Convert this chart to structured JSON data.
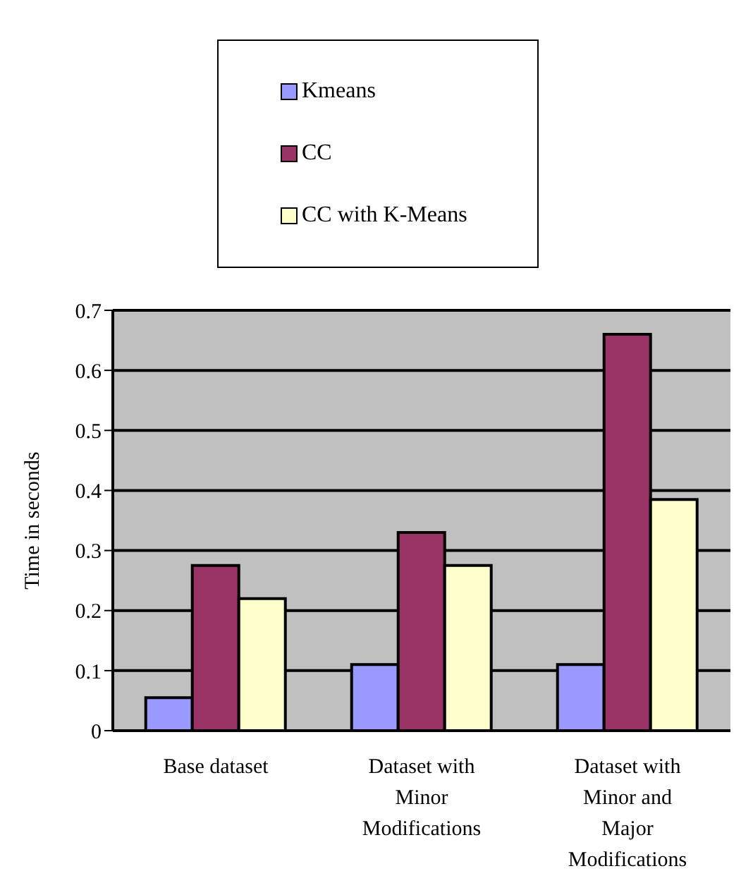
{
  "chart_data": {
    "type": "bar",
    "ylabel": "Time in seconds",
    "categories": [
      "Base dataset",
      "Dataset with Minor Modifications",
      "Dataset with Minor and Major Modifications"
    ],
    "series": [
      {
        "name": "Kmeans",
        "color": "#9999ff",
        "values": [
          0.055,
          0.11,
          0.11
        ]
      },
      {
        "name": "CC",
        "color": "#993366",
        "values": [
          0.275,
          0.33,
          0.66
        ]
      },
      {
        "name": "CC with K-Means",
        "color": "#ffffcc",
        "values": [
          0.22,
          0.275,
          0.385
        ]
      }
    ],
    "ylim": [
      0,
      0.7
    ],
    "yticks": [
      0,
      0.1,
      0.2,
      0.3,
      0.4,
      0.5,
      0.6,
      0.7
    ],
    "grid": "y",
    "legend": "top"
  }
}
